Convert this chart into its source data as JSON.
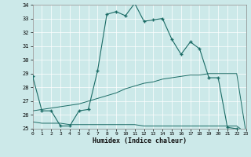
{
  "xlabel": "Humidex (Indice chaleur)",
  "xlim": [
    0,
    23
  ],
  "ylim": [
    25,
    34
  ],
  "yticks": [
    25,
    26,
    27,
    28,
    29,
    30,
    31,
    32,
    33,
    34
  ],
  "xticks": [
    0,
    1,
    2,
    3,
    4,
    5,
    6,
    7,
    8,
    9,
    10,
    11,
    12,
    13,
    14,
    15,
    16,
    17,
    18,
    19,
    20,
    21,
    22,
    23
  ],
  "bg_color": "#cce9e9",
  "line_color": "#1a6b65",
  "line1_x": [
    0,
    1,
    2,
    3,
    4,
    5,
    6,
    7,
    8,
    9,
    10,
    11,
    12,
    13,
    14,
    15,
    16,
    17,
    18,
    19,
    20,
    21,
    22,
    23
  ],
  "line1_y": [
    28.8,
    26.3,
    26.3,
    25.2,
    25.2,
    26.3,
    26.4,
    29.2,
    33.3,
    33.5,
    33.2,
    34.1,
    32.8,
    32.9,
    33.0,
    31.5,
    30.4,
    31.3,
    30.8,
    28.7,
    28.7,
    25.1,
    25.0,
    24.7
  ],
  "line2_x": [
    0,
    1,
    2,
    3,
    4,
    5,
    6,
    7,
    8,
    9,
    10,
    11,
    12,
    13,
    14,
    15,
    16,
    17,
    18,
    19,
    20,
    21,
    22,
    23
  ],
  "line2_y": [
    25.5,
    25.4,
    25.4,
    25.4,
    25.3,
    25.3,
    25.3,
    25.3,
    25.3,
    25.3,
    25.3,
    25.3,
    25.2,
    25.2,
    25.2,
    25.2,
    25.2,
    25.2,
    25.2,
    25.2,
    25.2,
    25.2,
    25.2,
    24.7
  ],
  "line3_x": [
    0,
    1,
    2,
    3,
    4,
    5,
    6,
    7,
    8,
    9,
    10,
    11,
    12,
    13,
    14,
    15,
    16,
    17,
    18,
    19,
    20,
    21,
    22,
    23
  ],
  "line3_y": [
    26.3,
    26.4,
    26.5,
    26.6,
    26.7,
    26.8,
    27.0,
    27.2,
    27.4,
    27.6,
    27.9,
    28.1,
    28.3,
    28.4,
    28.6,
    28.7,
    28.8,
    28.9,
    28.9,
    29.0,
    29.0,
    29.0,
    29.0,
    24.7
  ]
}
